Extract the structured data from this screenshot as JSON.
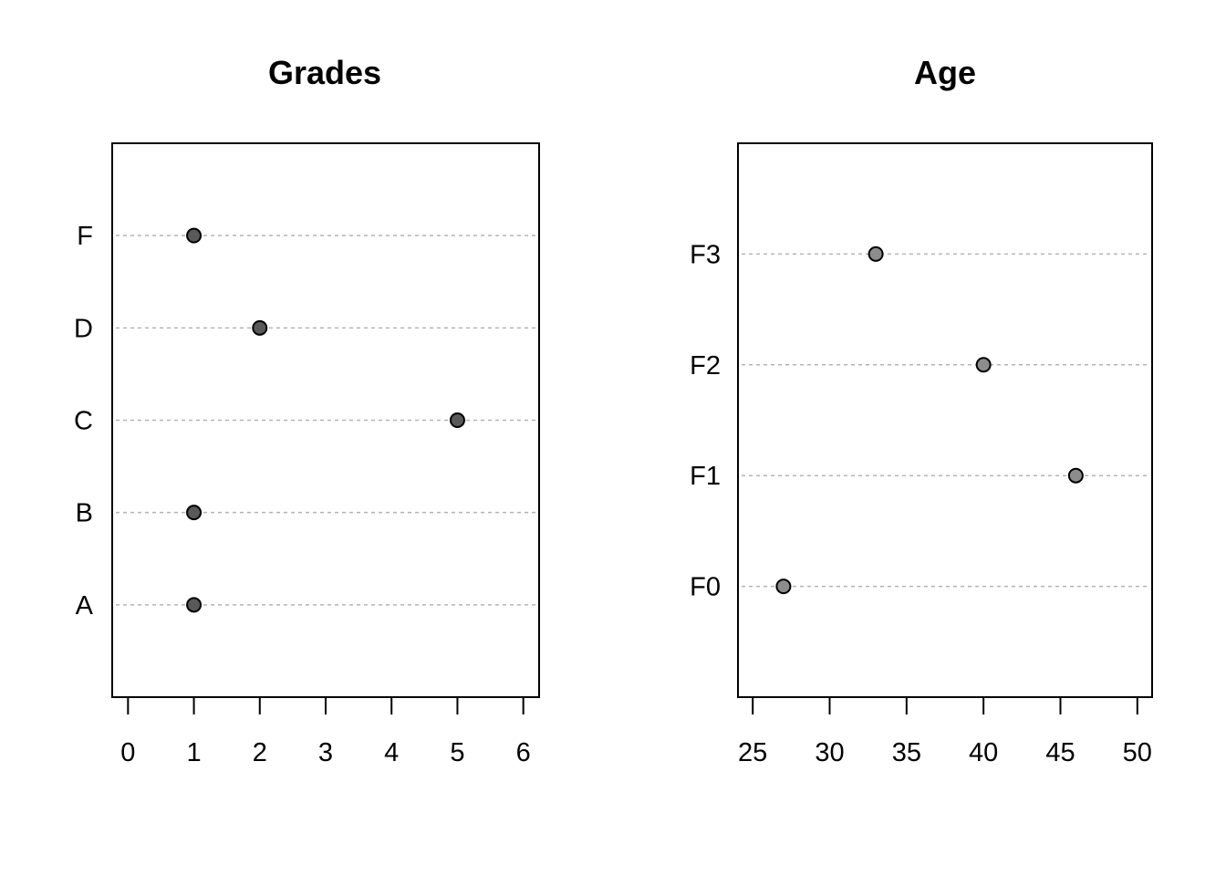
{
  "chart_data": [
    {
      "type": "scatter",
      "title": "Grades",
      "categories": [
        "A",
        "B",
        "C",
        "D",
        "F"
      ],
      "values": [
        1,
        1,
        5,
        2,
        1
      ],
      "xlim": [
        -0.24,
        6.24
      ],
      "xticks": [
        0,
        1,
        2,
        3,
        4,
        5,
        6
      ],
      "xlabel": "",
      "ylabel": "",
      "grid": false,
      "point_color": "#595959"
    },
    {
      "type": "scatter",
      "title": "Age",
      "categories": [
        "F0",
        "F1",
        "F2",
        "F3"
      ],
      "values": [
        27,
        46,
        40,
        33
      ],
      "xlim": [
        24.04,
        50.96
      ],
      "xticks": [
        25,
        30,
        35,
        40,
        45,
        50
      ],
      "xlabel": "",
      "ylabel": "",
      "grid": false,
      "point_color": "#8c8c8c"
    }
  ]
}
